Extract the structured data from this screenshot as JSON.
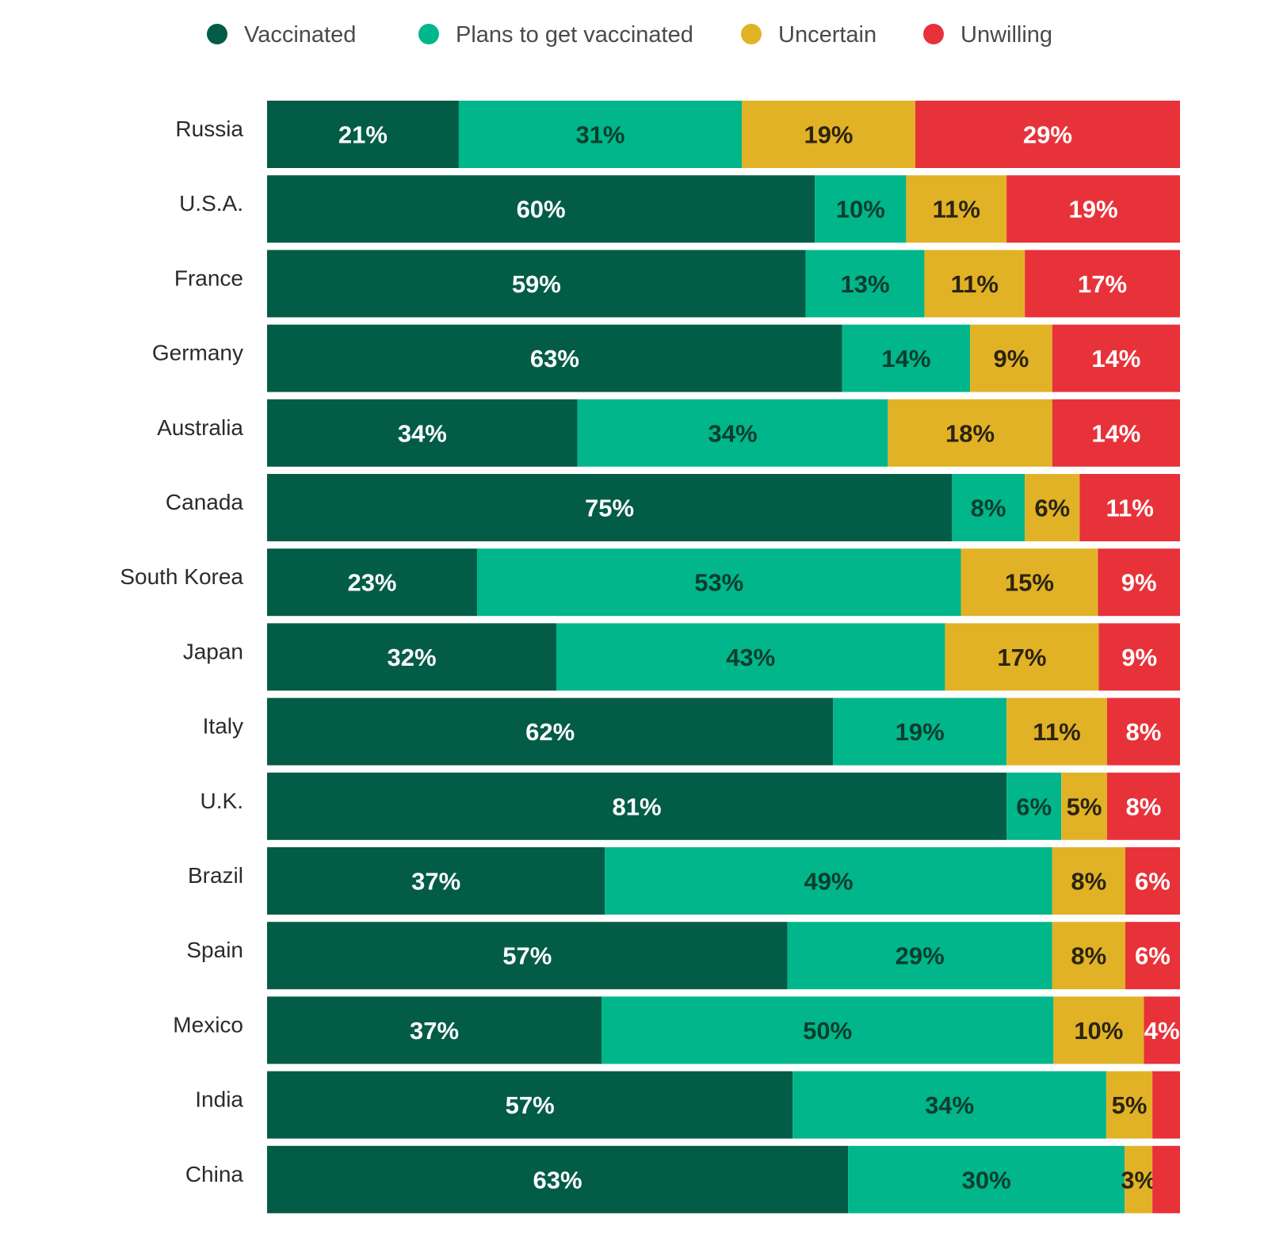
{
  "chart_data": {
    "type": "bar",
    "orientation": "horizontal",
    "stacked": true,
    "xlim": [
      0,
      100
    ],
    "grid": false,
    "legend_position": "top",
    "categories": [
      "Russia",
      "U.S.A.",
      "France",
      "Germany",
      "Australia",
      "Canada",
      "South Korea",
      "Japan",
      "Italy",
      "U.K.",
      "Brazil",
      "Spain",
      "Mexico",
      "India",
      "China"
    ],
    "series": [
      {
        "name": "Vaccinated",
        "color": "#025c46",
        "label_color": "#ffffff",
        "values": [
          21,
          60,
          59,
          63,
          34,
          75,
          23,
          32,
          62,
          81,
          37,
          57,
          37,
          57,
          63
        ],
        "labels": [
          "21%",
          "60%",
          "59%",
          "63%",
          "34%",
          "75%",
          "23%",
          "32%",
          "62%",
          "81%",
          "37%",
          "57%",
          "37%",
          "57%",
          "63%"
        ]
      },
      {
        "name": "Plans to get vaccinated",
        "color": "#00b68a",
        "label_color": "#0b3d2f",
        "values": [
          31,
          10,
          13,
          14,
          34,
          8,
          53,
          43,
          19,
          6,
          49,
          29,
          50,
          34,
          30
        ],
        "labels": [
          "31%",
          "10%",
          "13%",
          "14%",
          "34%",
          "8%",
          "53%",
          "43%",
          "19%",
          "6%",
          "49%",
          "29%",
          "50%",
          "34%",
          "30%"
        ]
      },
      {
        "name": "Uncertain",
        "color": "#e2b226",
        "label_color": "#2b2410",
        "values": [
          19,
          11,
          11,
          9,
          18,
          6,
          15,
          17,
          11,
          5,
          8,
          8,
          10,
          5,
          3
        ],
        "labels": [
          "19%",
          "11%",
          "11%",
          "9%",
          "18%",
          "6%",
          "15%",
          "17%",
          "11%",
          "5%",
          "8%",
          "8%",
          "10%",
          "5%",
          "3%"
        ]
      },
      {
        "name": "Unwilling",
        "color": "#e8323a",
        "label_color": "#ffffff",
        "values": [
          29,
          19,
          17,
          14,
          14,
          11,
          9,
          9,
          8,
          8,
          6,
          6,
          4,
          3,
          3
        ],
        "labels": [
          "29%",
          "19%",
          "17%",
          "14%",
          "14%",
          "11%",
          "9%",
          "9%",
          "8%",
          "8%",
          "6%",
          "6%",
          "4%",
          "",
          ""
        ]
      }
    ]
  }
}
